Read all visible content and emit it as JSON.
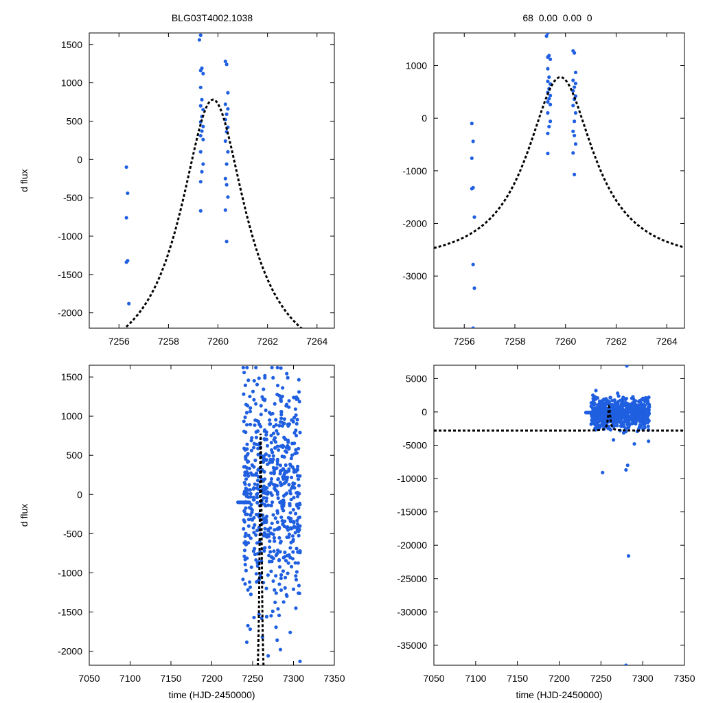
{
  "title_left": "BLG03T4002.1038",
  "title_right": "68  0.00  0.00  0",
  "point_color": "#1f5fe0",
  "model_color": "#000000",
  "chart_data": [
    {
      "id": "zoom-left",
      "type": "scatter",
      "ylabel": "d flux",
      "xlabel": "",
      "xlim": [
        7254.8,
        7264.7
      ],
      "ylim": [
        -2200,
        1650
      ],
      "xticks": [
        7256,
        7258,
        7260,
        7262,
        7264
      ],
      "yticks": [
        -2000,
        -1500,
        -1000,
        -500,
        0,
        500,
        1000,
        1500
      ],
      "model": {
        "t0": 7259.8,
        "peak": 780,
        "base": -2800,
        "tau": 1.6
      },
      "points": [
        [
          7256.3,
          -100
        ],
        [
          7256.35,
          -440
        ],
        [
          7256.3,
          -760
        ],
        [
          7256.35,
          -1320
        ],
        [
          7256.3,
          -1340
        ],
        [
          7256.4,
          -1880
        ],
        [
          7259.3,
          1620
        ],
        [
          7259.25,
          1560
        ],
        [
          7259.35,
          1190
        ],
        [
          7259.3,
          1160
        ],
        [
          7259.4,
          1120
        ],
        [
          7259.3,
          940
        ],
        [
          7259.35,
          780
        ],
        [
          7259.3,
          700
        ],
        [
          7259.4,
          650
        ],
        [
          7259.35,
          560
        ],
        [
          7259.3,
          490
        ],
        [
          7259.4,
          430
        ],
        [
          7259.35,
          370
        ],
        [
          7259.3,
          310
        ],
        [
          7259.4,
          260
        ],
        [
          7259.3,
          100
        ],
        [
          7259.4,
          -60
        ],
        [
          7259.35,
          -160
        ],
        [
          7259.3,
          -290
        ],
        [
          7259.3,
          -670
        ],
        [
          7260.3,
          1280
        ],
        [
          7260.35,
          1240
        ],
        [
          7260.4,
          870
        ],
        [
          7260.3,
          720
        ],
        [
          7260.4,
          660
        ],
        [
          7260.35,
          590
        ],
        [
          7260.3,
          520
        ],
        [
          7260.4,
          420
        ],
        [
          7260.35,
          360
        ],
        [
          7260.3,
          240
        ],
        [
          7260.4,
          100
        ],
        [
          7260.35,
          -60
        ],
        [
          7260.3,
          -250
        ],
        [
          7260.35,
          -330
        ],
        [
          7260.4,
          -490
        ],
        [
          7260.3,
          -660
        ],
        [
          7260.35,
          -1070
        ]
      ]
    },
    {
      "id": "zoom-right",
      "type": "scatter",
      "ylabel": "",
      "xlabel": "",
      "xlim": [
        7254.8,
        7264.7
      ],
      "ylim": [
        -3990,
        1620
      ],
      "xticks": [
        7256,
        7258,
        7260,
        7262,
        7264
      ],
      "yticks": [
        -3000,
        -2000,
        -1000,
        0,
        1000
      ],
      "model": {
        "t0": 7259.8,
        "peak": 780,
        "base": -2800,
        "tau": 1.6
      },
      "points": [
        [
          7256.3,
          -100
        ],
        [
          7256.35,
          -440
        ],
        [
          7256.3,
          -760
        ],
        [
          7256.35,
          -1320
        ],
        [
          7256.3,
          -1340
        ],
        [
          7256.4,
          -1880
        ],
        [
          7256.35,
          -2780
        ],
        [
          7256.4,
          -3230
        ],
        [
          7256.35,
          -3990
        ],
        [
          7259.3,
          1620
        ],
        [
          7259.25,
          1560
        ],
        [
          7259.35,
          1190
        ],
        [
          7259.3,
          1160
        ],
        [
          7259.4,
          1120
        ],
        [
          7259.3,
          940
        ],
        [
          7259.35,
          780
        ],
        [
          7259.3,
          700
        ],
        [
          7259.4,
          650
        ],
        [
          7259.35,
          560
        ],
        [
          7259.3,
          490
        ],
        [
          7259.4,
          430
        ],
        [
          7259.35,
          370
        ],
        [
          7259.3,
          310
        ],
        [
          7259.4,
          260
        ],
        [
          7259.3,
          100
        ],
        [
          7259.4,
          -60
        ],
        [
          7259.35,
          -160
        ],
        [
          7259.3,
          -290
        ],
        [
          7259.3,
          -670
        ],
        [
          7260.3,
          1280
        ],
        [
          7260.35,
          1240
        ],
        [
          7260.4,
          870
        ],
        [
          7260.3,
          720
        ],
        [
          7260.4,
          660
        ],
        [
          7260.35,
          590
        ],
        [
          7260.3,
          520
        ],
        [
          7260.4,
          420
        ],
        [
          7260.35,
          360
        ],
        [
          7260.3,
          240
        ],
        [
          7260.4,
          100
        ],
        [
          7260.35,
          -60
        ],
        [
          7260.3,
          -250
        ],
        [
          7260.35,
          -330
        ],
        [
          7260.4,
          -490
        ],
        [
          7260.3,
          -660
        ],
        [
          7260.35,
          -1070
        ]
      ]
    },
    {
      "id": "full-left",
      "type": "scatter",
      "ylabel": "d flux",
      "xlabel": "time (HJD-2450000)",
      "xlim": [
        7050,
        7350
      ],
      "ylim": [
        -2180,
        1650
      ],
      "xticks": [
        7050,
        7100,
        7150,
        7200,
        7250,
        7300,
        7350
      ],
      "yticks": [
        -2000,
        -1500,
        -1000,
        -500,
        0,
        500,
        1000,
        1500
      ],
      "model": {
        "t0": 7259.8,
        "peak": 780,
        "base": -2800,
        "tau": 1.6
      },
      "flat_segment": {
        "t_start": 7232,
        "t_end": 7246,
        "value": -100
      },
      "scatter_block": {
        "t_start": 7238,
        "t_end": 7308,
        "count": 620,
        "center": 0,
        "spread": 700,
        "ymin": -2180,
        "ymax": 1620,
        "seed": 11
      },
      "points": [
        [
          7254,
          1620
        ],
        [
          7265,
          1490
        ],
        [
          7275,
          1490
        ],
        [
          7293,
          1490
        ],
        [
          7306,
          -1260
        ],
        [
          7300,
          -1210
        ],
        [
          7262,
          -1820
        ],
        [
          7280,
          -1860
        ],
        [
          7284,
          -1980
        ],
        [
          7269,
          -2060
        ],
        [
          7308,
          -2130
        ],
        [
          7247,
          -1720
        ]
      ]
    },
    {
      "id": "full-right",
      "type": "scatter",
      "ylabel": "",
      "xlabel": "time (HJD-2450000)",
      "xlim": [
        7050,
        7350
      ],
      "ylim": [
        -38000,
        7000
      ],
      "xticks": [
        7050,
        7100,
        7150,
        7200,
        7250,
        7300,
        7350
      ],
      "yticks": [
        -35000,
        -30000,
        -25000,
        -20000,
        -15000,
        -10000,
        -5000,
        0,
        5000
      ],
      "model": {
        "t0": 7259.8,
        "peak": 780,
        "base": -2800,
        "tau": 1.6
      },
      "flat_segment": {
        "t_start": 7232,
        "t_end": 7246,
        "value": -100
      },
      "scatter_block": {
        "t_start": 7238,
        "t_end": 7308,
        "count": 700,
        "center": -200,
        "spread": 1100,
        "ymin": -4000,
        "ymax": 2500,
        "seed": 23
      },
      "points": [
        [
          7281,
          6900
        ],
        [
          7252,
          -9100
        ],
        [
          7280,
          -8700
        ],
        [
          7282,
          -8000
        ],
        [
          7283,
          -21600
        ],
        [
          7280,
          -38000
        ],
        [
          7307,
          -4400
        ],
        [
          7265,
          -4200
        ],
        [
          7290,
          -4800
        ],
        [
          7244,
          3200
        ],
        [
          7270,
          2800
        ]
      ]
    }
  ]
}
